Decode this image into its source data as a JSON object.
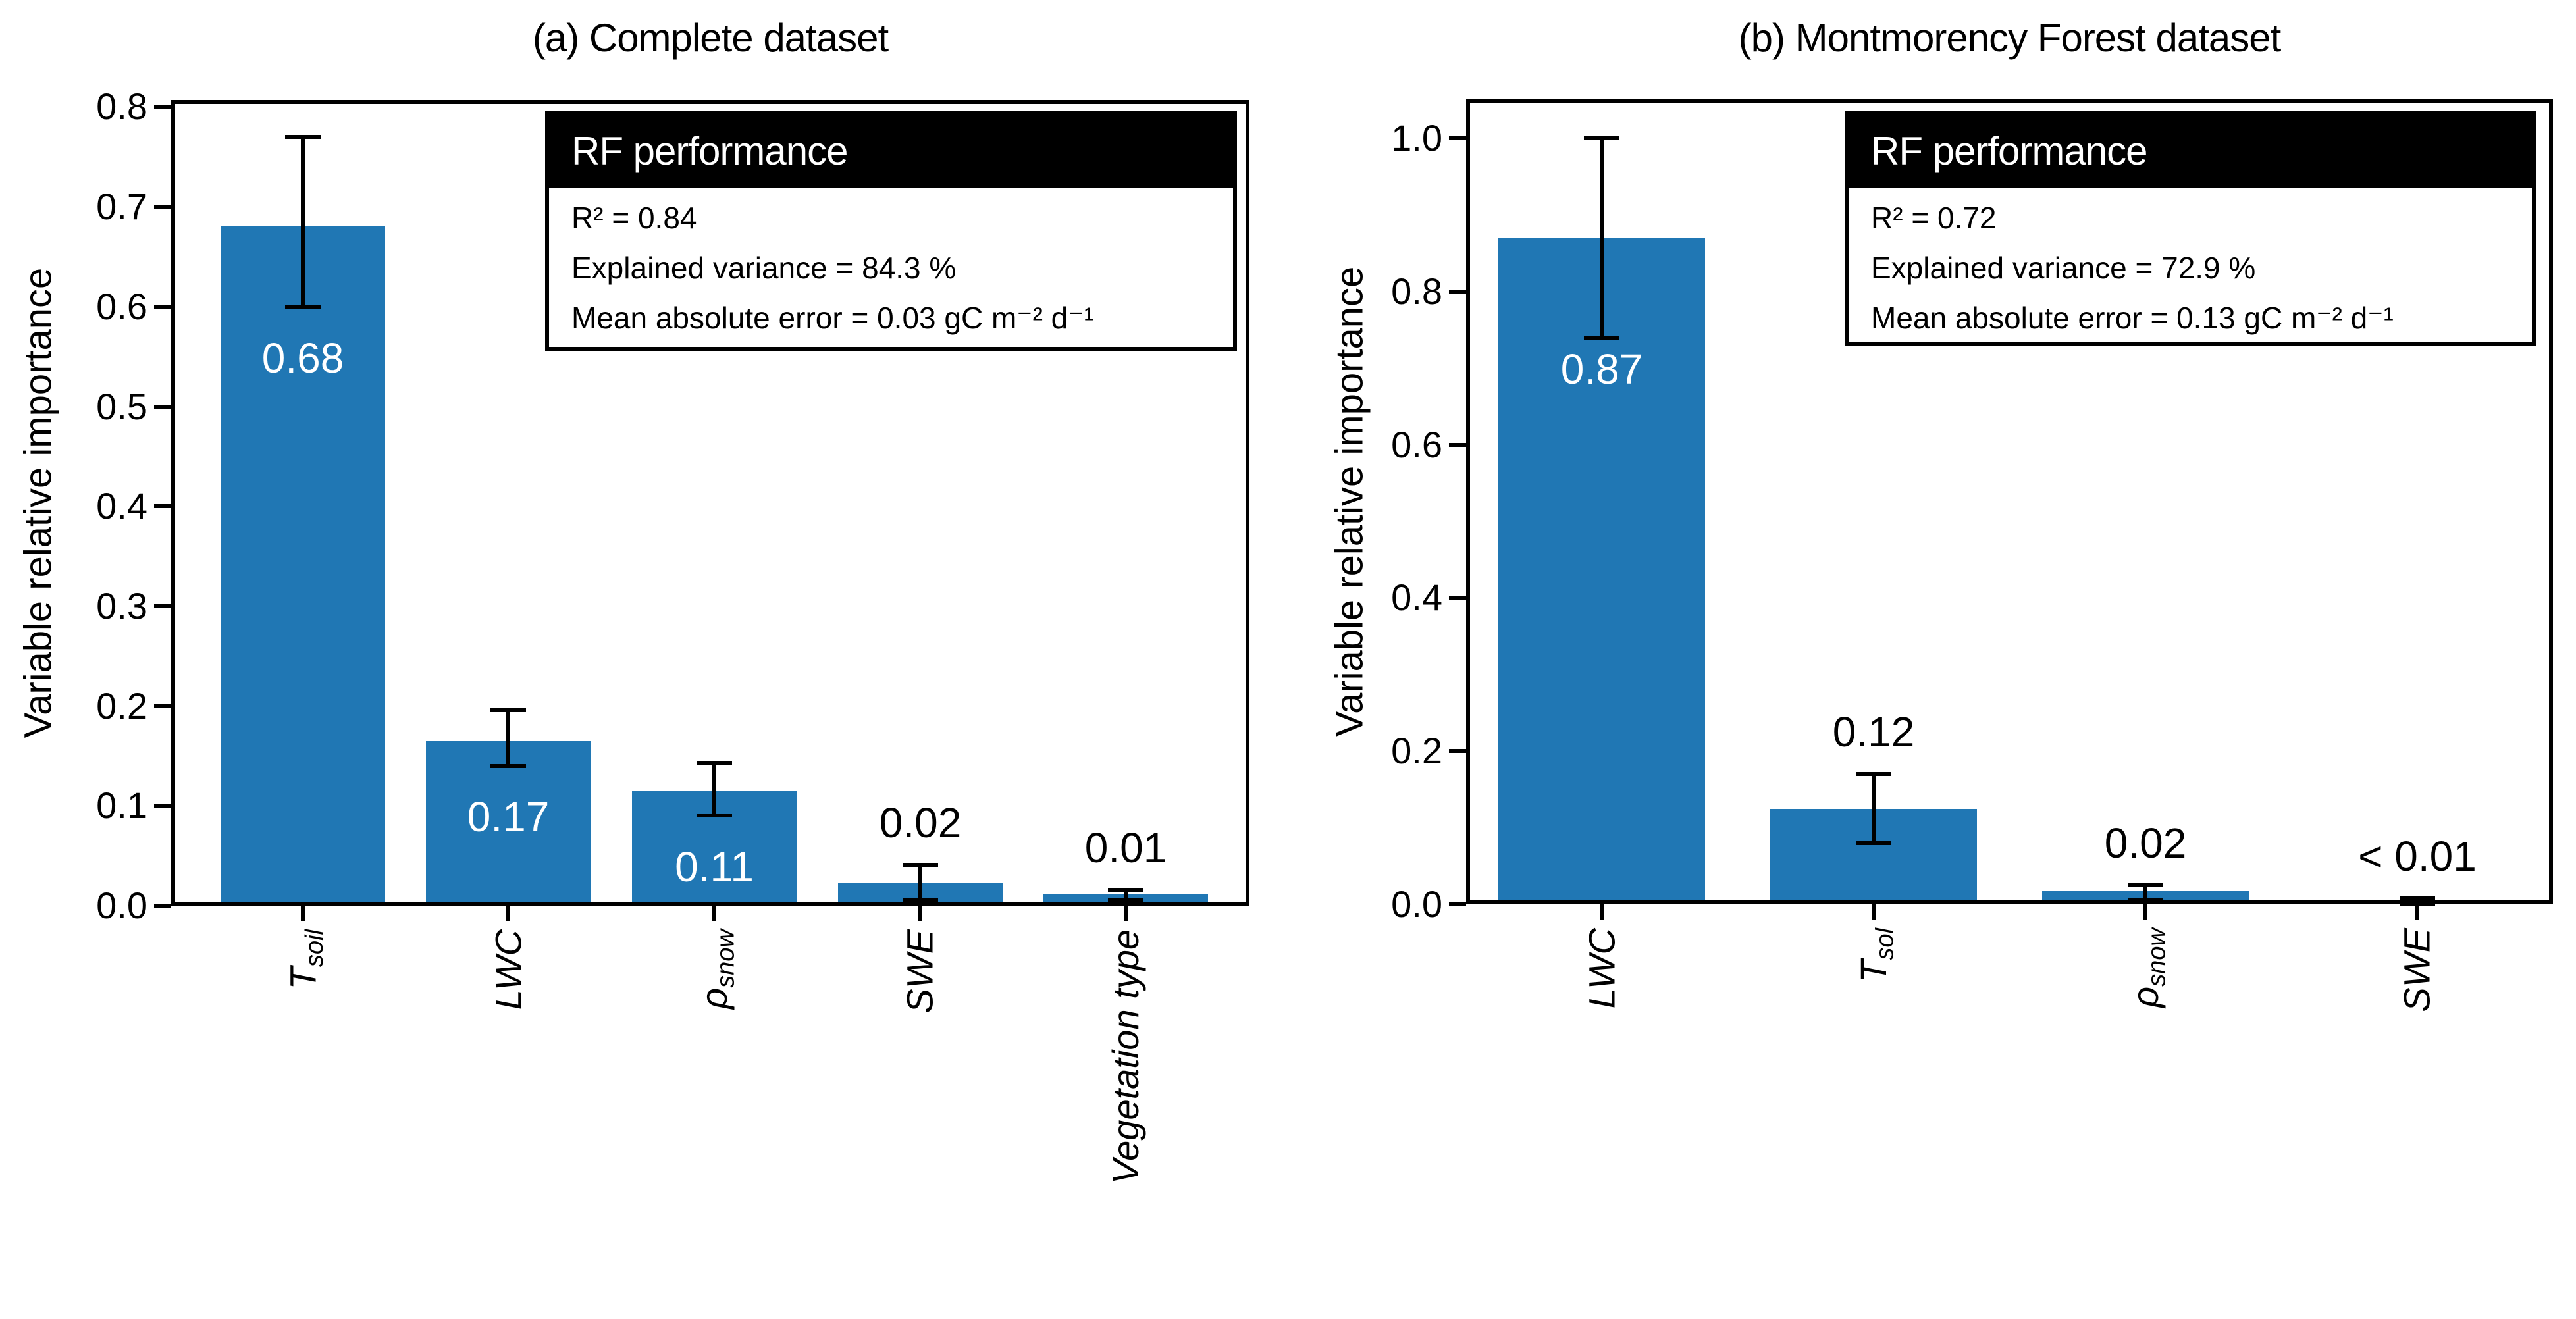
{
  "figure": {
    "background_color": "#ffffff",
    "bar_color": "#2077b4",
    "axis_color": "#000000",
    "error_bar_color": "#000000"
  },
  "chart_data": [
    {
      "type": "bar",
      "panel": "a",
      "title": "(a) Complete dataset",
      "xlabel": "",
      "ylabel": "Variable relative importance",
      "ylim": [
        0,
        0.81
      ],
      "yticks": [
        "0.0",
        "0.1",
        "0.2",
        "0.3",
        "0.4",
        "0.5",
        "0.6",
        "0.7",
        "0.8"
      ],
      "grid": false,
      "legend": null,
      "categories": [
        {
          "main": "T",
          "sub": "soil"
        },
        {
          "main": "LWC",
          "sub": ""
        },
        {
          "main": "ρ",
          "sub": "snow"
        },
        {
          "main": "SWE",
          "sub": ""
        },
        {
          "main": "Vegetation type",
          "sub": ""
        }
      ],
      "values": [
        0.68,
        0.165,
        0.115,
        0.023,
        0.011
      ],
      "bar_labels": [
        "0.68",
        "0.17",
        "0.11",
        "0.02",
        "0.01"
      ],
      "bar_label_placement": [
        "inside",
        "inside",
        "inside",
        "above",
        "above"
      ],
      "error_low": [
        0.6,
        0.14,
        0.09,
        0.006,
        0.005
      ],
      "error_high": [
        0.77,
        0.196,
        0.143,
        0.041,
        0.016
      ],
      "rf_box": {
        "header": "RF performance",
        "lines": [
          "R² = 0.84",
          "Explained variance = 84.3 %",
          "Mean absolute error = 0.03 gC m⁻² d⁻¹"
        ]
      }
    },
    {
      "type": "bar",
      "panel": "b",
      "title": "(b) Montmorency Forest dataset",
      "xlabel": "",
      "ylabel": "Variable relative importance",
      "ylim": [
        0,
        1.05
      ],
      "yticks": [
        "0.0",
        "0.2",
        "0.4",
        "0.6",
        "0.8",
        "1.0"
      ],
      "grid": false,
      "legend": null,
      "categories": [
        {
          "main": "LWC",
          "sub": ""
        },
        {
          "main": "T",
          "sub": "sol"
        },
        {
          "main": "ρ",
          "sub": "snow"
        },
        {
          "main": "SWE",
          "sub": ""
        }
      ],
      "values": [
        0.87,
        0.125,
        0.018,
        0.004
      ],
      "bar_labels": [
        "0.87",
        "0.12",
        "0.02",
        "< 0.01"
      ],
      "bar_label_placement": [
        "inside",
        "above",
        "above",
        "above"
      ],
      "error_low": [
        0.74,
        0.08,
        0.005,
        0.001
      ],
      "error_high": [
        1.0,
        0.17,
        0.025,
        0.008
      ],
      "rf_box": {
        "header": "RF performance",
        "lines": [
          "R² = 0.72",
          "Explained variance = 72.9 %",
          "Mean absolute error = 0.13 gC m⁻² d⁻¹"
        ]
      }
    }
  ]
}
